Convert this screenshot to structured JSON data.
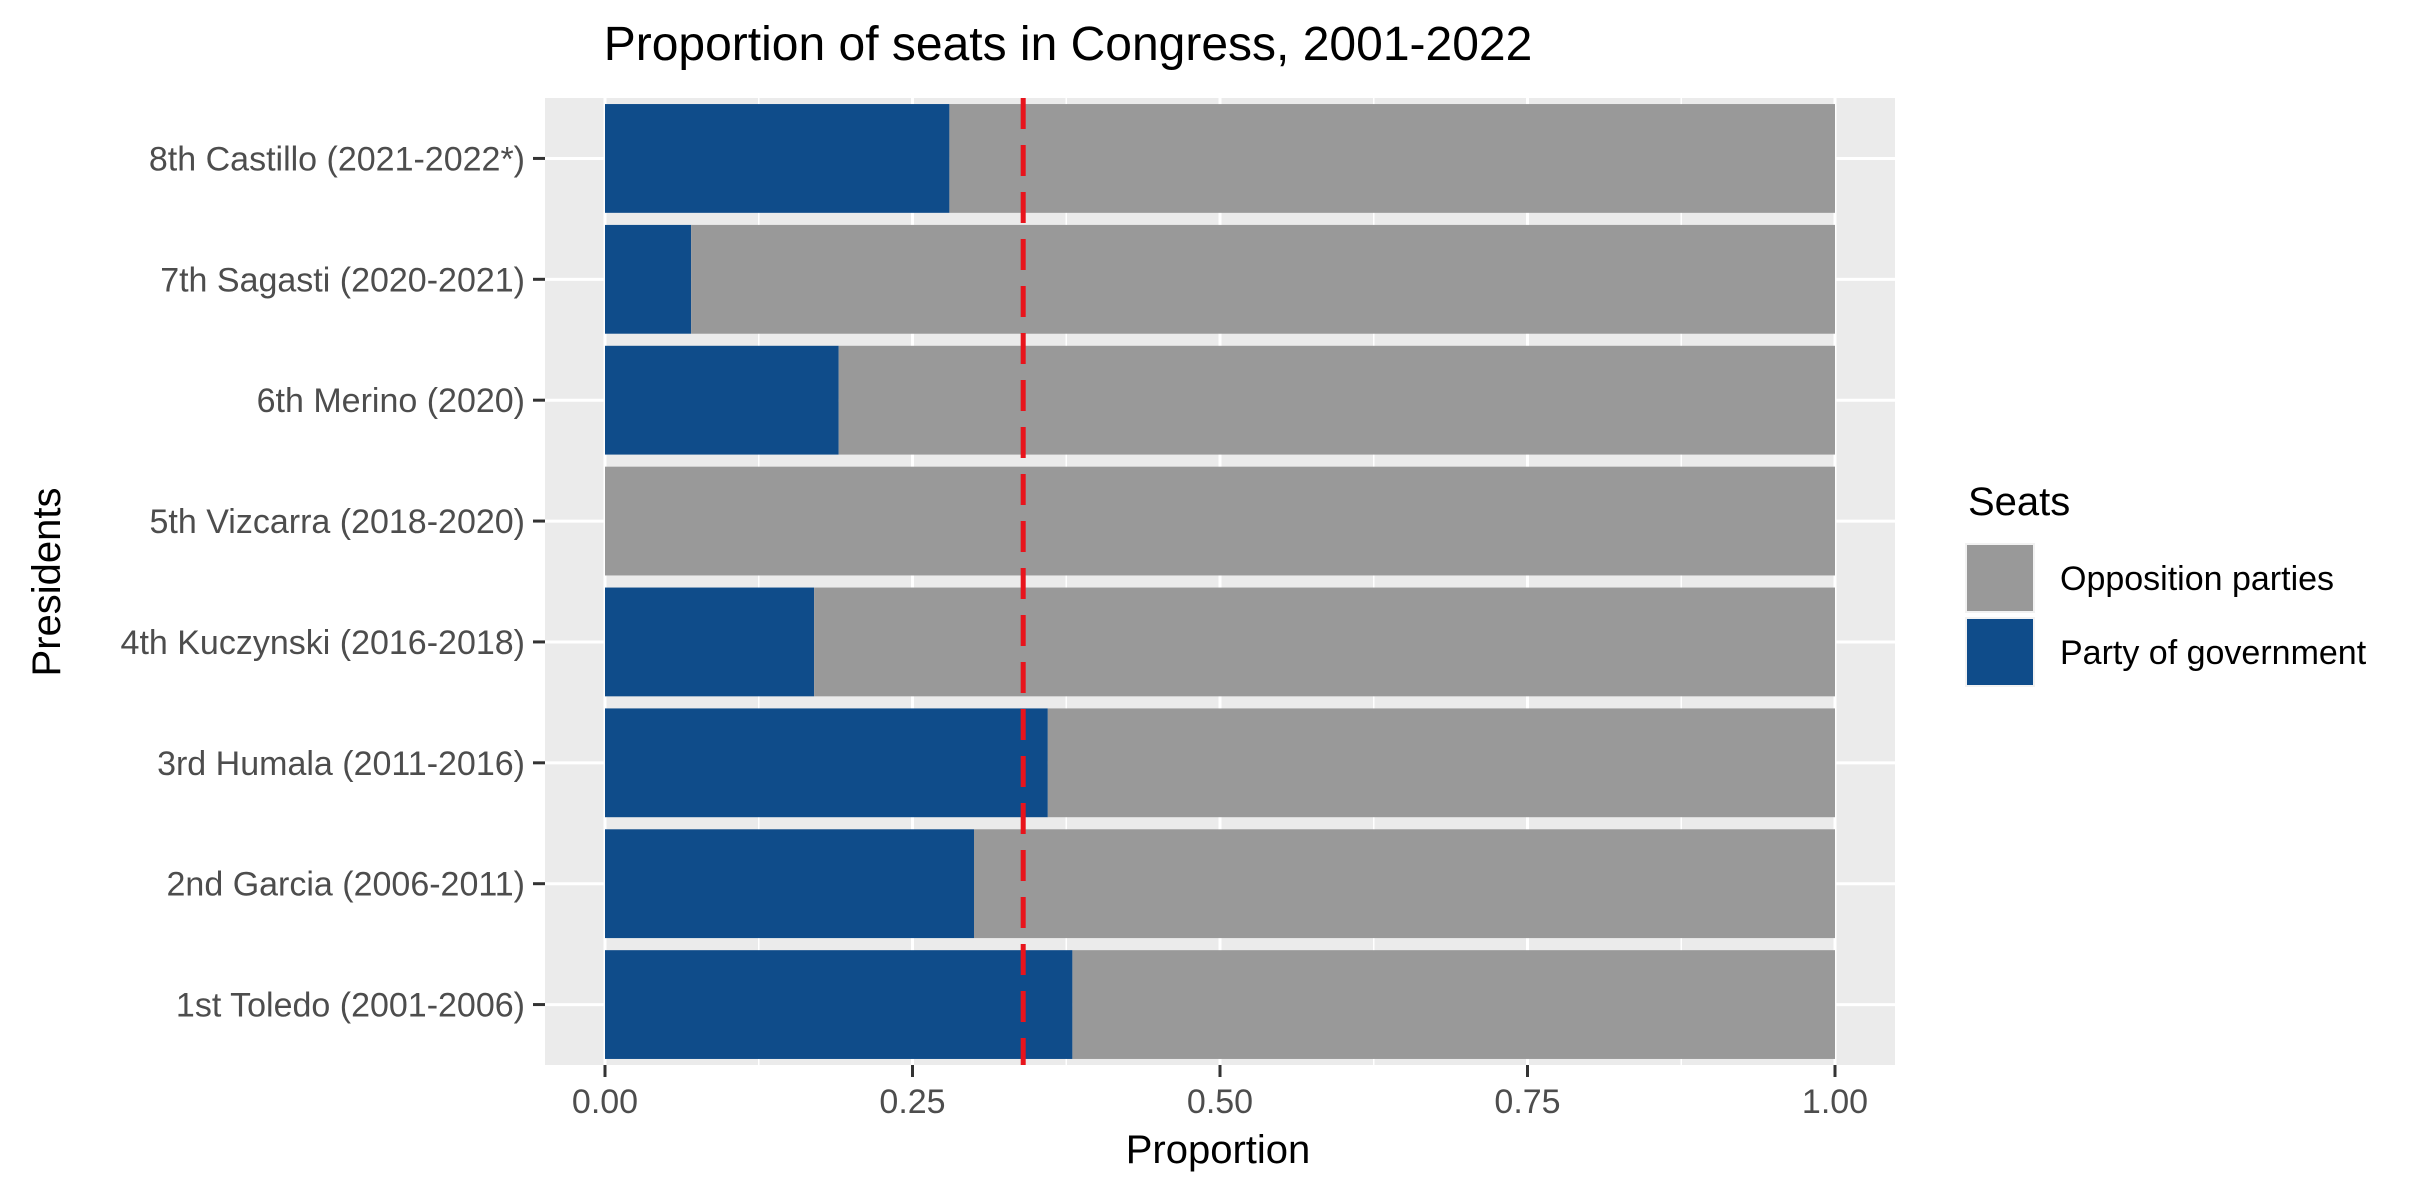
{
  "chart_data": {
    "type": "bar",
    "orientation": "horizontal",
    "stacked": true,
    "title": "Proportion of seats in Congress, 2001-2022",
    "xlabel": "Proportion",
    "ylabel": "Presidents",
    "xlim": [
      -0.05,
      1.05
    ],
    "x_ticks": [
      0,
      0.25,
      0.5,
      0.75,
      1.0
    ],
    "x_tick_labels": [
      "0.00",
      "0.25",
      "0.50",
      "0.75",
      "1.00"
    ],
    "categories": [
      "1st Toledo (2001-2006)",
      "2nd Garcia (2006-2011)",
      "3rd Humala (2011-2016)",
      "4th Kuczynski (2016-2018)",
      "5th Vizcarra (2018-2020)",
      "6th Merino (2020)",
      "7th Sagasti (2020-2021)",
      "8th Castillo (2021-2022*)"
    ],
    "series": [
      {
        "name": "Party of government",
        "color": "#0f4c8a",
        "values": [
          0.38,
          0.3,
          0.36,
          0.17,
          0.0,
          0.19,
          0.07,
          0.28
        ]
      },
      {
        "name": "Opposition parties",
        "color": "#999999",
        "values": [
          0.62,
          0.7,
          0.64,
          0.83,
          1.0,
          0.81,
          0.93,
          0.72
        ]
      }
    ],
    "reference_line": {
      "x": 0.34,
      "color": "#e8141c",
      "style": "dashed"
    },
    "legend": {
      "title": "Seats",
      "position": "right",
      "entries": [
        {
          "label": "Opposition parties",
          "color": "#999999"
        },
        {
          "label": "Party of government",
          "color": "#0f4c8a"
        }
      ]
    },
    "grid": true,
    "panel_background": "#ebebeb"
  }
}
